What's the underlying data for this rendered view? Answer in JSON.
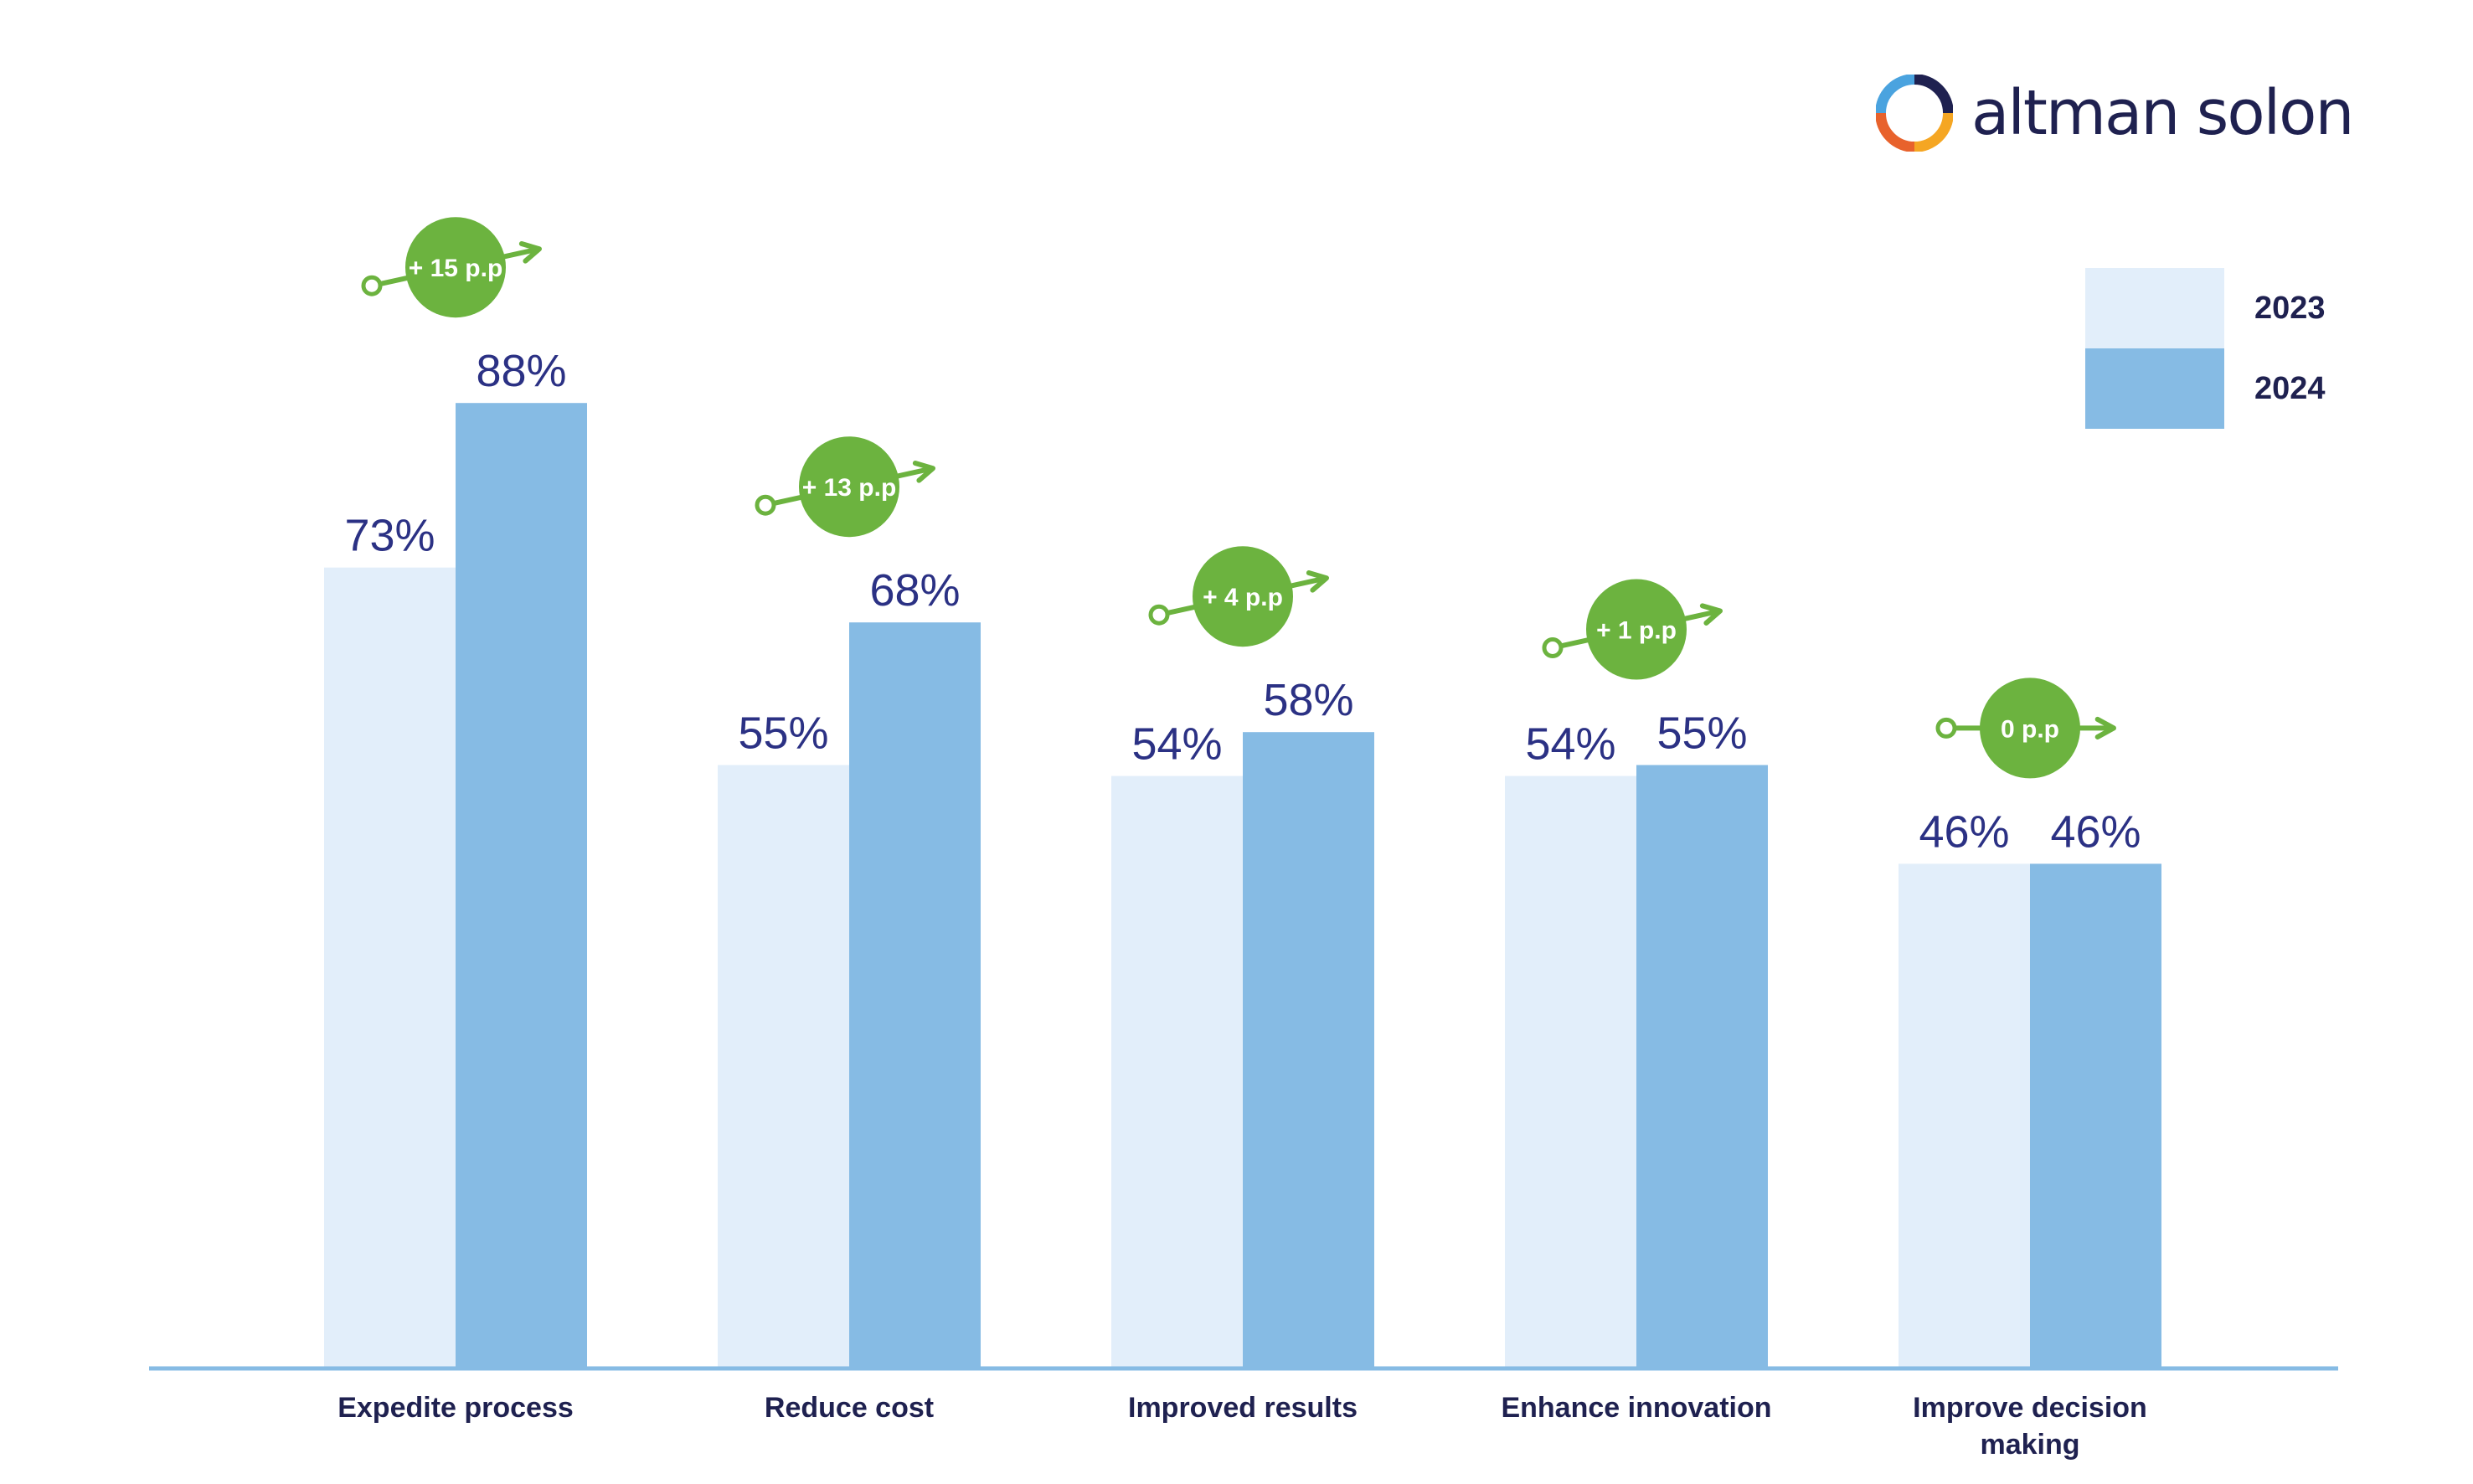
{
  "brand": {
    "name": "altman solon",
    "logo_colors": [
      "#4aa3df",
      "#f5a623",
      "#e8622c",
      "#1f2150"
    ]
  },
  "legend": [
    {
      "label": "2023",
      "color": "#e2eefa"
    },
    {
      "label": "2024",
      "color": "#86bbe4"
    }
  ],
  "colors": {
    "label_text": "#2b3184",
    "category_text": "#1f2150",
    "axis": "#86bbe4",
    "badge": "#6cb33f"
  },
  "chart_data": {
    "type": "bar",
    "title": "",
    "xlabel": "",
    "ylabel": "",
    "ylim": [
      0,
      100
    ],
    "grid": false,
    "legend_position": "top-right",
    "categories": [
      "Expedite process",
      "Reduce cost",
      "Improved results",
      "Enhance innovation",
      "Improve decision making"
    ],
    "series": [
      {
        "name": "2023",
        "values": [
          73,
          55,
          54,
          54,
          46
        ],
        "labels": [
          "73%",
          "55%",
          "54%",
          "54%",
          "46%"
        ]
      },
      {
        "name": "2024",
        "values": [
          88,
          68,
          58,
          55,
          46
        ],
        "labels": [
          "88%",
          "68%",
          "58%",
          "55%",
          "46%"
        ]
      }
    ],
    "annotations": [
      "+ 15 p.p",
      "+ 13 p.p",
      "+ 4 p.p",
      "+ 1 p.p",
      "0 p.p"
    ]
  }
}
